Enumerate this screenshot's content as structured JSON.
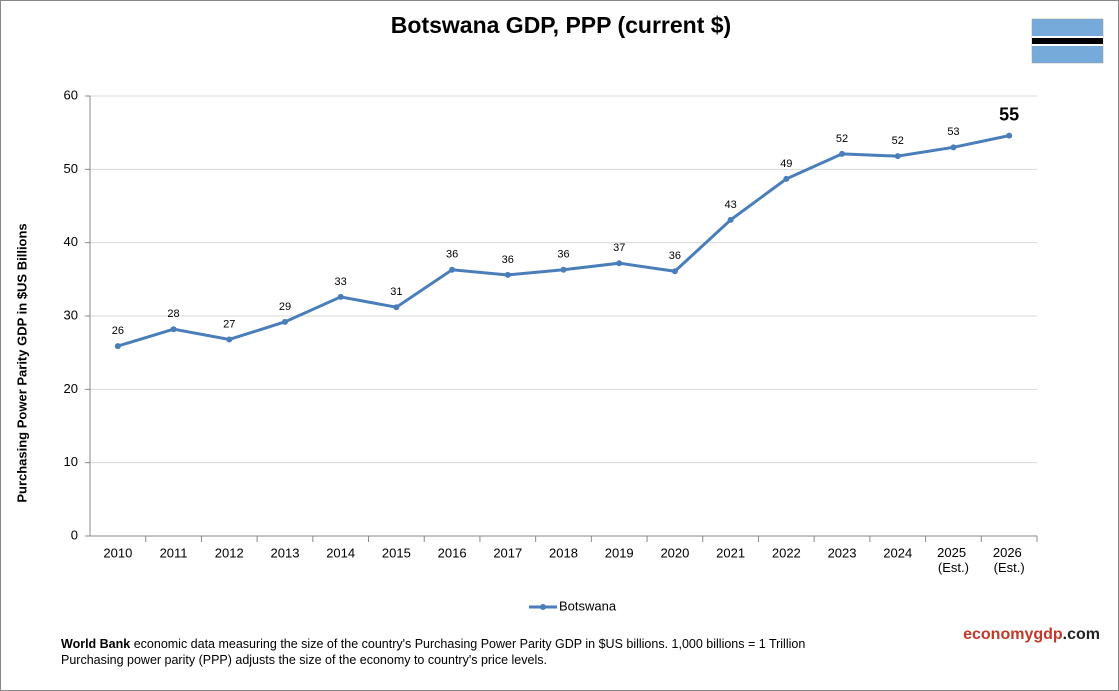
{
  "chart_data": {
    "type": "line",
    "title": "Botswana GDP, PPP (current $)",
    "y_label": "Purchasing Power Parity GDP in $US Billions",
    "categories": [
      "2010",
      "2011",
      "2012",
      "2013",
      "2014",
      "2015",
      "2016",
      "2017",
      "2018",
      "2019",
      "2020",
      "2021",
      "2022",
      "2023",
      "2024",
      "2025 (Est.)",
      "2026 (Est.)"
    ],
    "series": [
      {
        "name": "Botswana",
        "color": "#4a7ebb",
        "values": [
          25.9,
          28.2,
          26.8,
          29.2,
          32.6,
          31.2,
          36.3,
          35.6,
          36.3,
          37.2,
          36.1,
          43.1,
          48.7,
          52.1,
          51.8,
          53.0,
          54.6
        ],
        "value_labels": [
          "26",
          "28",
          "27",
          "29",
          "33",
          "31",
          "36",
          "36",
          "36",
          "37",
          "36",
          "43",
          "49",
          "52",
          "52",
          "53",
          "55"
        ]
      }
    ],
    "ylim": [
      0,
      60
    ],
    "yticks": [
      0,
      10,
      20,
      30,
      40,
      50,
      60
    ],
    "grid": true,
    "legend": "bottom"
  },
  "footer": {
    "source": "World Bank",
    "line1": " economic data measuring the size of the country's Purchasing Power Parity GDP in $US billions. 1,000 billions = 1 Trillion",
    "line2": "Purchasing power parity (PPP) adjusts the size of the economy to country's price levels."
  },
  "brand": {
    "name": "economygdp",
    "suffix": ".com"
  }
}
